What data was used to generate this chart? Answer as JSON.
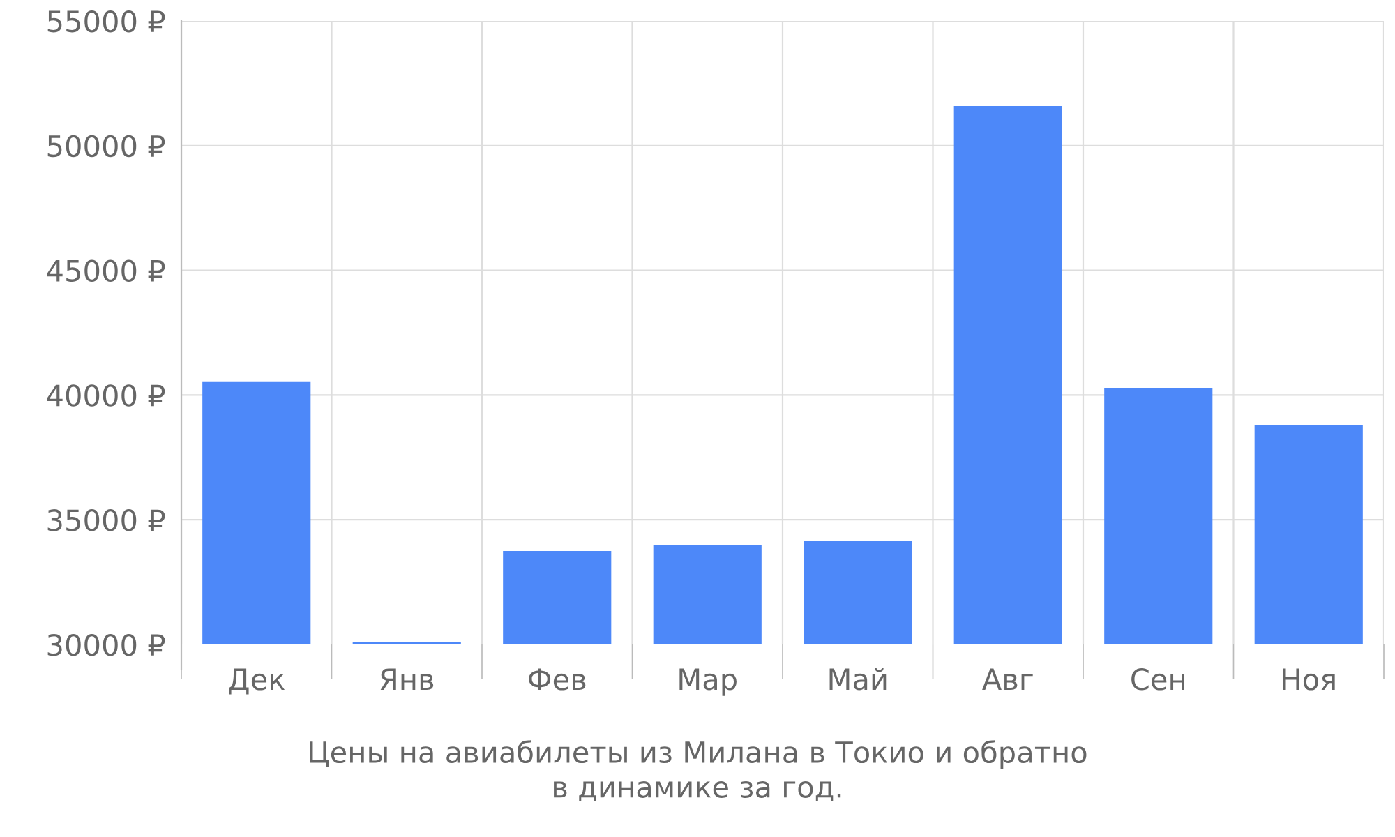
{
  "chart_data": {
    "type": "bar",
    "categories": [
      "Дек",
      "Янв",
      "Фев",
      "Мар",
      "Май",
      "Авг",
      "Сен",
      "Ноя"
    ],
    "values": [
      40550,
      30100,
      33750,
      33970,
      34140,
      51590,
      40290,
      38780
    ],
    "color": "#4d88f9",
    "ylim": [
      30000,
      55000
    ],
    "yticks": [
      {
        "value": 30000,
        "label": "30000 ₽"
      },
      {
        "value": 35000,
        "label": "35000 ₽"
      },
      {
        "value": 40000,
        "label": "40000 ₽"
      },
      {
        "value": 45000,
        "label": "45000 ₽"
      },
      {
        "value": 50000,
        "label": "50000 ₽"
      },
      {
        "value": 55000,
        "label": "55000 ₽"
      }
    ],
    "grid": true,
    "annotations": [
      "Цены на авиабилеты из Милана в Токио и обратно\nв динамике за год."
    ]
  }
}
